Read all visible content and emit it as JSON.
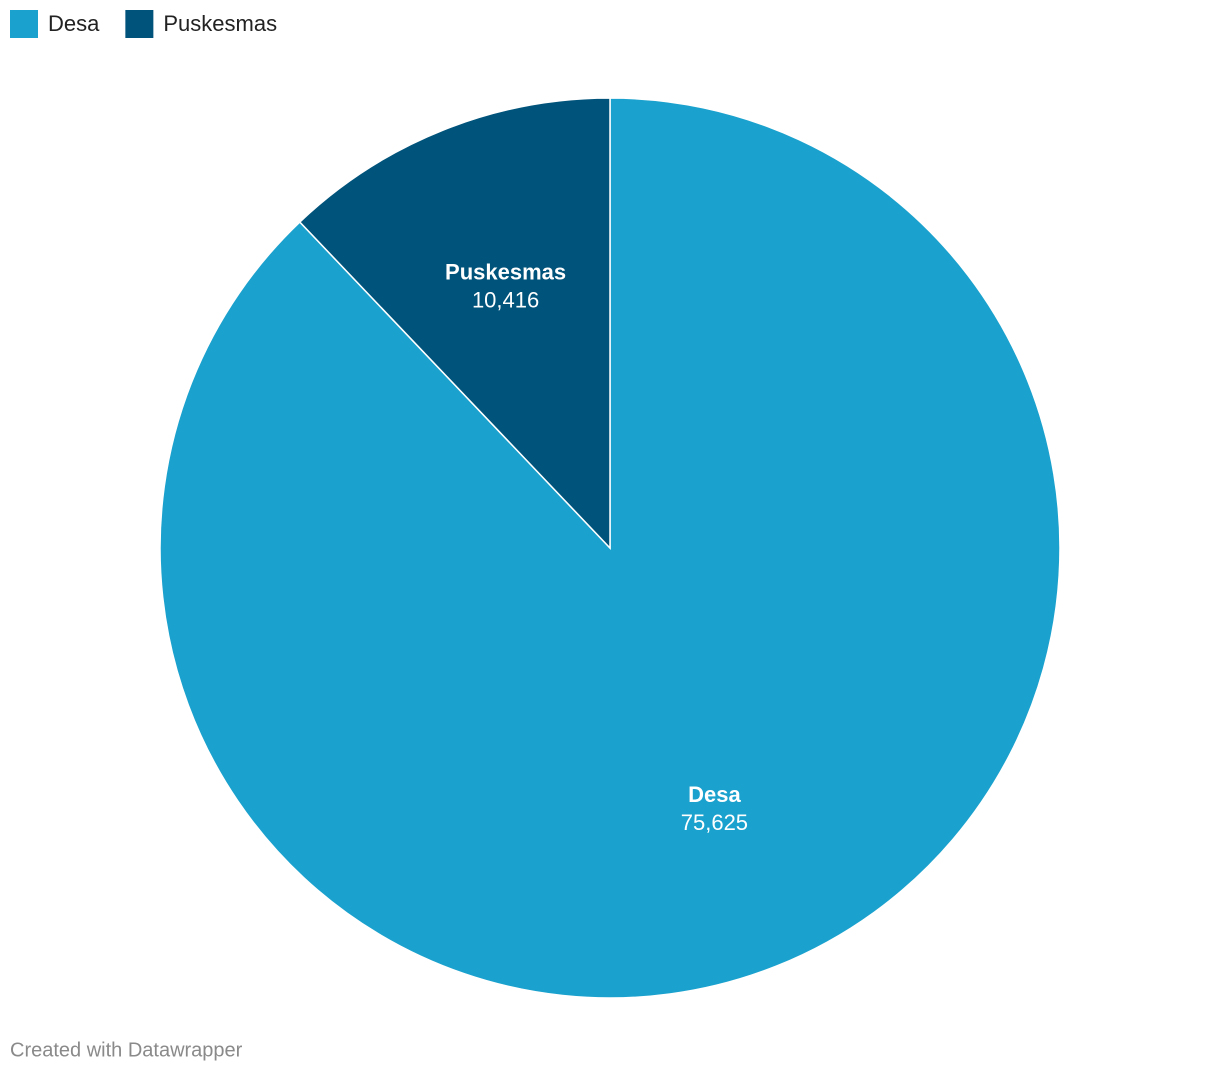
{
  "chart_data": {
    "type": "pie",
    "categories": [
      "Desa",
      "Puskesmas"
    ],
    "values": [
      75625,
      10416
    ],
    "value_labels": [
      "75,625",
      "10,416"
    ],
    "colors": [
      "#1aa1cd",
      "#00537a"
    ],
    "legend": "top-left",
    "credit": "Created with Datawrapper"
  }
}
